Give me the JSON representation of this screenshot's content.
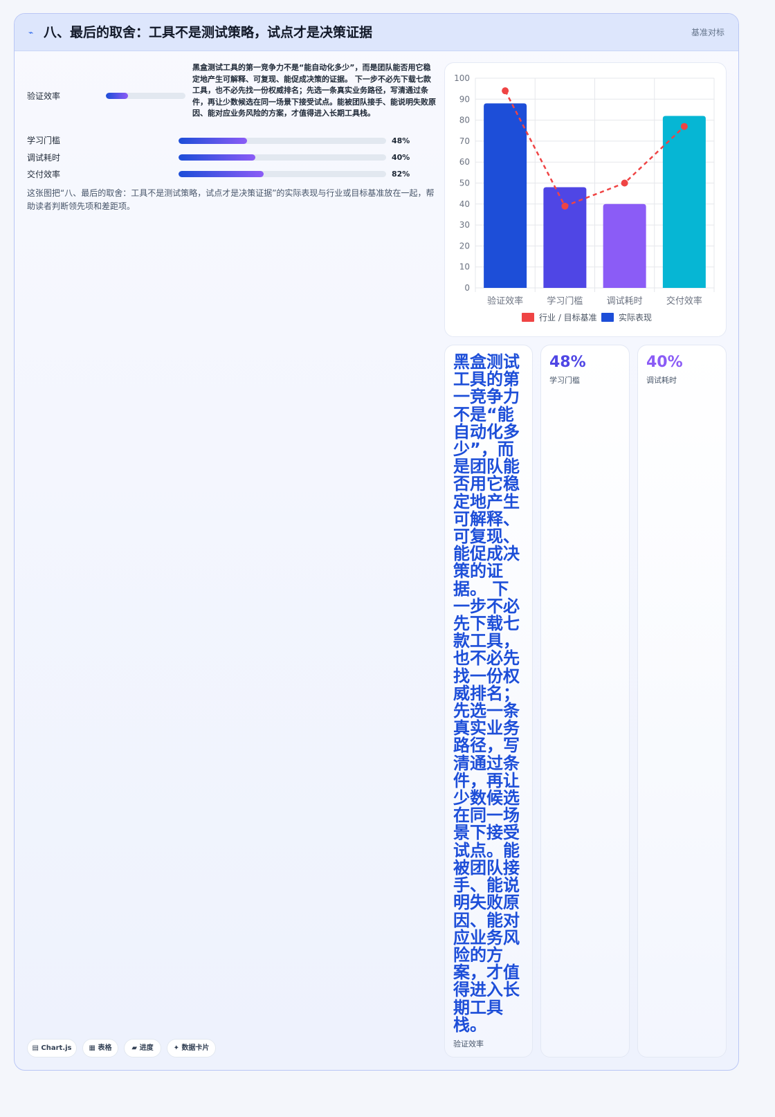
{
  "header": {
    "icon": "bolt-icon",
    "icon_glyph": "⌁",
    "title": "八、最后的取舍：工具不是测试策略，试点才是决策证据",
    "tag": "基准对标"
  },
  "metrics": [
    {
      "label": "验证效率",
      "value_text": "",
      "progress": 0.28
    },
    {
      "label": "学习门槛",
      "value_text": "48%",
      "progress": 0.33
    },
    {
      "label": "调试耗时",
      "value_text": "40%",
      "progress": 0.37
    },
    {
      "label": "交付效率",
      "value_text": "82%",
      "progress": 0.41
    }
  ],
  "lead_text": "黑盒测试工具的第一竞争力不是“能自动化多少”，而是团队能否用它稳定地产生可解释、可复现、能促成决策的证据。 下一步不必先下载七款工具，也不必先找一份权威排名；先选一条真实业务路径，写清通过条件，再让少数候选在同一场景下接受试点。能被团队接手、能说明失败原因、能对应业务风险的方案，才值得进入长期工具栈。",
  "description": "这张图把“八、最后的取舍：工具不是测试策略，试点才是决策证据”的实际表现与行业或目标基准放在一起，帮助读者判断领先项和差距项。",
  "chart_data": {
    "type": "bar",
    "categories": [
      "验证效率",
      "学习门槛",
      "调试耗时",
      "交付效率"
    ],
    "series": [
      {
        "name": "实际表现",
        "type": "bar",
        "values": [
          88,
          48,
          40,
          82
        ],
        "colors": [
          "#1d4ed8",
          "#4f46e5",
          "#8b5cf6",
          "#06b6d4"
        ]
      },
      {
        "name": "行业 / 目标基准",
        "type": "line",
        "style": "dashed",
        "values": [
          94,
          39,
          50,
          77
        ],
        "color": "#ef4444"
      }
    ],
    "ylim": [
      0,
      100
    ],
    "yticks": [
      0,
      10,
      20,
      30,
      40,
      50,
      60,
      70,
      80,
      90,
      100
    ],
    "grid": true,
    "legend": "bottom",
    "legend_order": [
      "行业 / 目标基准",
      "实际表现"
    ]
  },
  "stat_cards": [
    {
      "value": "黑盒测试工具的第一竞争力不是“能自动化多少”，而是团队能否用它稳定地产生可解释、可复现、能促成决策的证据。 下一步不必先下载七款工具，也不必先找一份权威排名；先选一条真实业务路径，写清通过条件，再让少数候选在同一场景下接受试点。能被团队接手、能说明失败原因、能对应业务风险的方案，才值得进入长期工具栈。",
      "label": "验证效率",
      "color": "#1d4ed8"
    },
    {
      "value": "48%",
      "label": "学习门槛",
      "color": "#4f46e5"
    },
    {
      "value": "40%",
      "label": "调试耗时",
      "color": "#8b5cf6"
    }
  ],
  "pills": [
    {
      "icon": "chart-icon",
      "glyph": "▤",
      "label": "Chart.js"
    },
    {
      "icon": "table-icon",
      "glyph": "▦",
      "label": "表格"
    },
    {
      "icon": "progress-icon",
      "glyph": "▰",
      "label": "进度"
    },
    {
      "icon": "sparkle-icon",
      "glyph": "✦",
      "label": "数据卡片"
    }
  ]
}
